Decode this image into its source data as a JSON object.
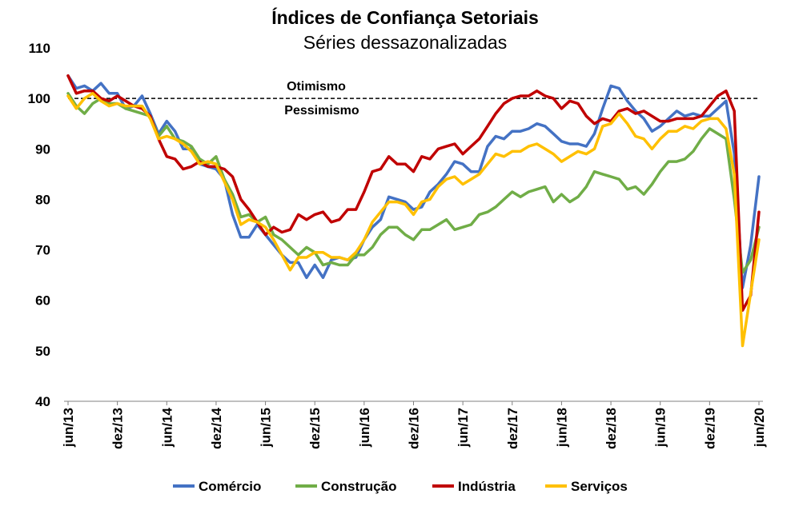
{
  "chart_data": {
    "type": "line",
    "title": "Índices de Confiança Setoriais",
    "subtitle": "Séries dessazonalizadas",
    "ylim": [
      40,
      110
    ],
    "yticks": [
      "110",
      "100",
      "90",
      "80",
      "70",
      "60",
      "50",
      "40"
    ],
    "xtick_labels": [
      "jun/13",
      "dez/13",
      "jun/14",
      "dez/14",
      "jun/15",
      "dez/15",
      "jun/16",
      "dez/16",
      "jun/17",
      "dez/17",
      "jun/18",
      "dez/18",
      "jun/19",
      "dez/19",
      "jun/20"
    ],
    "reference_line": {
      "value": 100,
      "above_label": "Otimismo",
      "below_label": "Pessimismo"
    },
    "grid": false,
    "legend_position": "bottom",
    "x": [
      "jun/13",
      "jul/13",
      "ago/13",
      "set/13",
      "out/13",
      "nov/13",
      "dez/13",
      "jan/14",
      "fev/14",
      "mar/14",
      "abr/14",
      "mai/14",
      "jun/14",
      "jul/14",
      "ago/14",
      "set/14",
      "out/14",
      "nov/14",
      "dez/14",
      "jan/15",
      "fev/15",
      "mar/15",
      "abr/15",
      "mai/15",
      "jun/15",
      "jul/15",
      "ago/15",
      "set/15",
      "out/15",
      "nov/15",
      "dez/15",
      "jan/16",
      "fev/16",
      "mar/16",
      "abr/16",
      "mai/16",
      "jun/16",
      "jul/16",
      "ago/16",
      "set/16",
      "out/16",
      "nov/16",
      "dez/16",
      "jan/17",
      "fev/17",
      "mar/17",
      "abr/17",
      "mai/17",
      "jun/17",
      "jul/17",
      "ago/17",
      "set/17",
      "out/17",
      "nov/17",
      "dez/17",
      "jan/18",
      "fev/18",
      "mar/18",
      "abr/18",
      "mai/18",
      "jun/18",
      "jul/18",
      "ago/18",
      "set/18",
      "out/18",
      "nov/18",
      "dez/18",
      "jan/19",
      "fev/19",
      "mar/19",
      "abr/19",
      "mai/19",
      "jun/19",
      "jul/19",
      "ago/19",
      "set/19",
      "out/19",
      "nov/19",
      "dez/19",
      "jan/20",
      "fev/20",
      "mar/20",
      "abr/20",
      "mai/20",
      "jun/20"
    ],
    "series": [
      {
        "name": "Comércio",
        "color": "#4472C4",
        "values": [
          104.5,
          102.0,
          102.5,
          101.5,
          103.0,
          101.0,
          101.0,
          98.0,
          98.5,
          100.5,
          97.0,
          93.0,
          95.5,
          93.5,
          90.0,
          90.0,
          87.0,
          86.5,
          86.0,
          84.0,
          77.0,
          72.5,
          72.5,
          75.0,
          73.0,
          71.0,
          69.0,
          67.5,
          67.5,
          64.5,
          67.0,
          64.5,
          68.0,
          68.5,
          68.0,
          68.5,
          72.0,
          74.5,
          76.0,
          80.5,
          80.0,
          79.5,
          78.0,
          78.5,
          81.5,
          83.0,
          85.0,
          87.5,
          87.0,
          85.5,
          85.5,
          90.5,
          92.5,
          92.0,
          93.5,
          93.5,
          94.0,
          95.0,
          94.5,
          93.0,
          91.5,
          91.0,
          91.0,
          90.5,
          93.0,
          98.0,
          102.5,
          102.0,
          99.5,
          97.5,
          96.0,
          93.5,
          94.5,
          96.0,
          97.5,
          96.5,
          97.0,
          96.5,
          96.5,
          98.0,
          99.5,
          89.0,
          62.5,
          71.0,
          84.5
        ]
      },
      {
        "name": "Construção",
        "color": "#70AD47",
        "values": [
          101.0,
          98.5,
          97.0,
          99.0,
          100.0,
          99.0,
          99.0,
          98.0,
          97.5,
          97.0,
          96.5,
          92.5,
          94.5,
          92.0,
          91.5,
          90.5,
          88.0,
          87.0,
          88.5,
          84.0,
          81.0,
          76.5,
          77.0,
          75.5,
          76.5,
          73.0,
          72.0,
          70.5,
          69.0,
          70.5,
          69.5,
          67.0,
          67.5,
          67.0,
          67.0,
          69.0,
          69.0,
          70.5,
          73.0,
          74.5,
          74.5,
          73.0,
          72.0,
          74.0,
          74.0,
          75.0,
          76.0,
          74.0,
          74.5,
          75.0,
          77.0,
          77.5,
          78.5,
          80.0,
          81.5,
          80.5,
          81.5,
          82.0,
          82.5,
          79.5,
          81.0,
          79.5,
          80.5,
          82.5,
          85.5,
          85.0,
          84.5,
          84.0,
          82.0,
          82.5,
          81.0,
          83.0,
          85.5,
          87.5,
          87.5,
          88.0,
          89.5,
          92.0,
          94.0,
          93.0,
          92.0,
          80.0,
          65.5,
          68.0,
          74.5
        ]
      },
      {
        "name": "Indústria",
        "color": "#C00000",
        "values": [
          104.5,
          101.0,
          101.5,
          101.5,
          100.0,
          99.5,
          100.5,
          99.5,
          98.5,
          98.0,
          96.5,
          92.0,
          88.5,
          88.0,
          86.0,
          86.5,
          87.5,
          86.5,
          86.5,
          86.0,
          84.5,
          80.0,
          78.0,
          75.5,
          73.0,
          74.5,
          73.5,
          74.0,
          77.0,
          76.0,
          77.0,
          77.5,
          75.5,
          76.0,
          78.0,
          78.0,
          81.5,
          85.5,
          86.0,
          88.5,
          87.0,
          87.0,
          85.5,
          88.5,
          88.0,
          90.0,
          90.5,
          91.0,
          89.0,
          90.5,
          92.0,
          94.5,
          97.0,
          99.0,
          100.0,
          100.5,
          100.5,
          101.5,
          100.5,
          100.0,
          98.0,
          99.5,
          99.0,
          96.5,
          95.0,
          96.0,
          95.5,
          97.5,
          98.0,
          97.0,
          97.5,
          96.5,
          95.5,
          95.5,
          96.0,
          96.0,
          96.0,
          96.5,
          98.5,
          100.5,
          101.5,
          97.5,
          58.0,
          61.0,
          77.5
        ]
      },
      {
        "name": "Serviços",
        "color": "#FFC000",
        "values": [
          100.5,
          98.0,
          100.0,
          101.0,
          99.5,
          98.5,
          99.0,
          98.5,
          98.5,
          98.5,
          96.0,
          92.0,
          92.5,
          92.0,
          91.0,
          89.5,
          87.0,
          87.5,
          87.0,
          83.5,
          80.0,
          75.0,
          76.0,
          75.5,
          74.5,
          72.0,
          69.0,
          66.0,
          68.5,
          68.5,
          69.5,
          69.5,
          68.5,
          68.5,
          68.0,
          69.5,
          72.0,
          75.5,
          77.5,
          79.5,
          79.5,
          79.0,
          77.0,
          79.5,
          80.0,
          82.5,
          84.0,
          84.5,
          83.0,
          84.0,
          85.0,
          87.0,
          89.0,
          88.5,
          89.5,
          89.5,
          90.5,
          91.0,
          90.0,
          89.0,
          87.5,
          88.5,
          89.5,
          89.0,
          90.0,
          94.5,
          95.0,
          97.0,
          95.0,
          92.5,
          92.0,
          90.0,
          92.0,
          93.5,
          93.5,
          94.5,
          94.0,
          95.5,
          96.0,
          96.0,
          94.0,
          85.0,
          51.0,
          61.5,
          72.0
        ]
      }
    ]
  }
}
